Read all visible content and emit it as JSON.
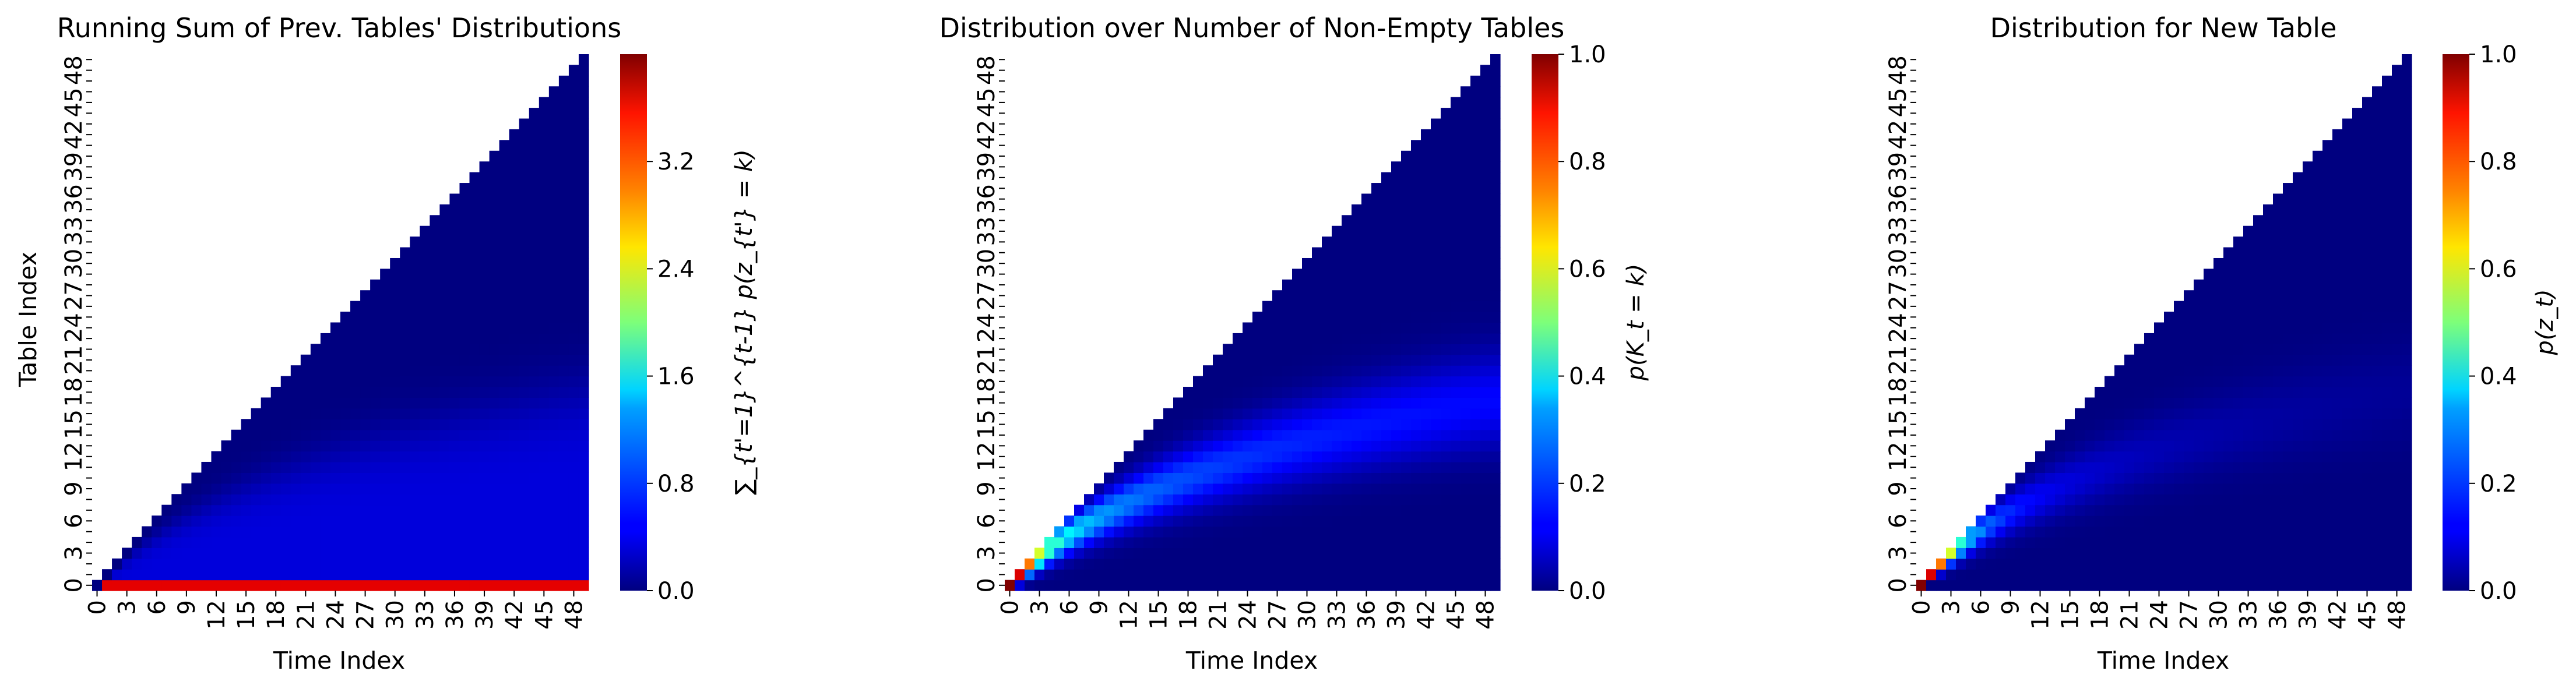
{
  "chart_data": [
    {
      "type": "heatmap",
      "title": "Running Sum of Prev. Tables' Distributions",
      "xlabel": "Time Index",
      "ylabel": "Table Index",
      "xticks": [
        "0",
        "3",
        "6",
        "9",
        "12",
        "15",
        "18",
        "21",
        "24",
        "27",
        "30",
        "33",
        "36",
        "39",
        "42",
        "45",
        "48"
      ],
      "yticks": [
        "0",
        "3",
        "6",
        "9",
        "12",
        "15",
        "18",
        "21",
        "24",
        "27",
        "30",
        "33",
        "36",
        "39",
        "42",
        "45",
        "48"
      ],
      "x_range": [
        0,
        50
      ],
      "y_range": [
        0,
        50
      ],
      "cells_shown": "table index <= time index (upper-left triangle blank)",
      "colormap": "jet",
      "colorbar": {
        "range": [
          0,
          4.0
        ],
        "ticks": [
          "0.0",
          "0.8",
          "1.6",
          "2.4",
          "3.2"
        ],
        "label": "∑_{t'=1}^{t-1} p(z_{t'} = k)"
      }
    },
    {
      "type": "heatmap",
      "title": "Distribution over Number of Non-Empty Tables",
      "xlabel": "Time Index",
      "ylabel": "",
      "xticks": [
        "0",
        "3",
        "6",
        "9",
        "12",
        "15",
        "18",
        "21",
        "24",
        "27",
        "30",
        "33",
        "36",
        "39",
        "42",
        "45",
        "48"
      ],
      "yticks": [
        "0",
        "3",
        "6",
        "9",
        "12",
        "15",
        "18",
        "21",
        "24",
        "27",
        "30",
        "33",
        "36",
        "39",
        "42",
        "45",
        "48"
      ],
      "x_range": [
        0,
        50
      ],
      "y_range": [
        0,
        50
      ],
      "cells_shown": "table index <= time index (upper-left triangle blank)",
      "colormap": "jet",
      "colorbar": {
        "range": [
          0,
          1.0
        ],
        "ticks": [
          "0.0",
          "0.2",
          "0.4",
          "0.6",
          "0.8",
          "1.0"
        ],
        "label": "p(K_t = k)"
      }
    },
    {
      "type": "heatmap",
      "title": "Distribution for New Table",
      "xlabel": "Time Index",
      "ylabel": "",
      "xticks": [
        "0",
        "3",
        "6",
        "9",
        "12",
        "15",
        "18",
        "21",
        "24",
        "27",
        "30",
        "33",
        "36",
        "39",
        "42",
        "45",
        "48"
      ],
      "yticks": [
        "0",
        "3",
        "6",
        "9",
        "12",
        "15",
        "18",
        "21",
        "24",
        "27",
        "30",
        "33",
        "36",
        "39",
        "42",
        "45",
        "48"
      ],
      "x_range": [
        0,
        50
      ],
      "y_range": [
        0,
        50
      ],
      "cells_shown": "table index <= time index (upper-left triangle blank)",
      "colormap": "jet",
      "colorbar": {
        "range": [
          0,
          1.0
        ],
        "ticks": [
          "0.0",
          "0.2",
          "0.4",
          "0.6",
          "0.8",
          "1.0"
        ],
        "label": "p(z_t)"
      }
    }
  ]
}
